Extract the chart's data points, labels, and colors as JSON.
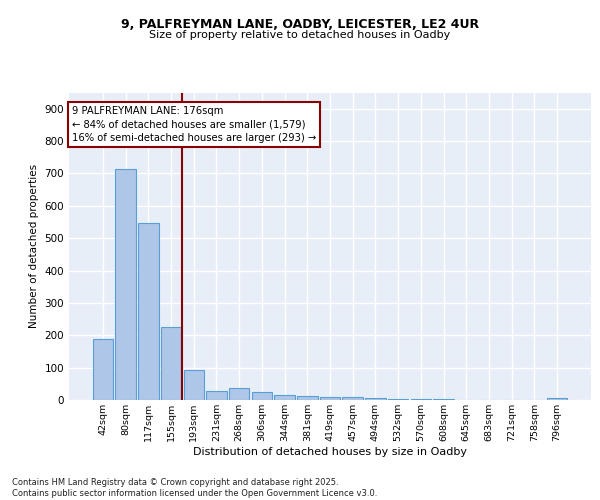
{
  "title_line1": "9, PALFREYMAN LANE, OADBY, LEICESTER, LE2 4UR",
  "title_line2": "Size of property relative to detached houses in Oadby",
  "xlabel": "Distribution of detached houses by size in Oadby",
  "ylabel": "Number of detached properties",
  "bar_labels": [
    "42sqm",
    "80sqm",
    "117sqm",
    "155sqm",
    "193sqm",
    "231sqm",
    "268sqm",
    "306sqm",
    "344sqm",
    "381sqm",
    "419sqm",
    "457sqm",
    "494sqm",
    "532sqm",
    "570sqm",
    "608sqm",
    "645sqm",
    "683sqm",
    "721sqm",
    "758sqm",
    "796sqm"
  ],
  "bar_values": [
    188,
    714,
    546,
    224,
    93,
    27,
    38,
    25,
    15,
    12,
    10,
    8,
    5,
    3,
    2,
    2,
    1,
    1,
    0,
    0,
    7
  ],
  "bar_color": "#aec6e8",
  "bar_edge_color": "#5a9fd4",
  "bg_color": "#e8eef8",
  "grid_color": "#ffffff",
  "vline_label_idx": 4,
  "vline_color": "#8b0000",
  "annotation_text": "9 PALFREYMAN LANE: 176sqm\n← 84% of detached houses are smaller (1,579)\n16% of semi-detached houses are larger (293) →",
  "annotation_box_color": "#8b0000",
  "ylim": [
    0,
    950
  ],
  "yticks": [
    0,
    100,
    200,
    300,
    400,
    500,
    600,
    700,
    800,
    900
  ],
  "footer_text": "Contains HM Land Registry data © Crown copyright and database right 2025.\nContains public sector information licensed under the Open Government Licence v3.0."
}
